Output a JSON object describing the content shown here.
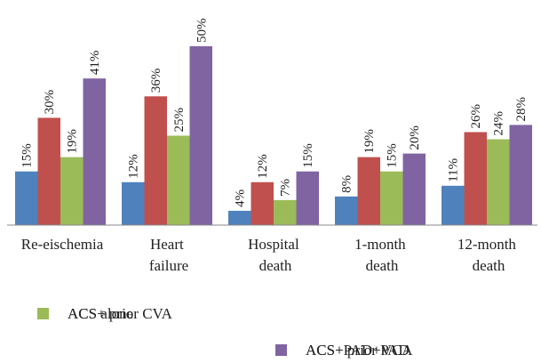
{
  "chart_data": {
    "type": "bar",
    "categories": [
      "Re-eischemia",
      "Heart failure",
      "Hospital death",
      "1-month death",
      "12-month death"
    ],
    "series": [
      {
        "name": "ACS alone",
        "color": "#4f81bd",
        "values": [
          15,
          12,
          4,
          8,
          11
        ],
        "value_labels": [
          "15%",
          "12%",
          "4%",
          "8%",
          "11%"
        ]
      },
      {
        "name": "ACS+ prior PAD",
        "color": "#c0504d",
        "values": [
          30,
          36,
          12,
          19,
          26
        ],
        "value_labels": [
          "30%",
          "36%",
          "12%",
          "19%",
          "26%"
        ]
      },
      {
        "name": "ACS+ prior CVA",
        "color": "#9bbb59",
        "values": [
          19,
          25,
          7,
          15,
          24
        ],
        "value_labels": [
          "19%",
          "25%",
          "7%",
          "15%",
          "24%"
        ]
      },
      {
        "name": "ACS+PAD+VCA",
        "color": "#8064a2",
        "values": [
          41,
          50,
          15,
          20,
          28
        ],
        "value_labels": [
          "41%",
          "50%",
          "15%",
          "20%",
          "28%"
        ]
      }
    ]
  }
}
